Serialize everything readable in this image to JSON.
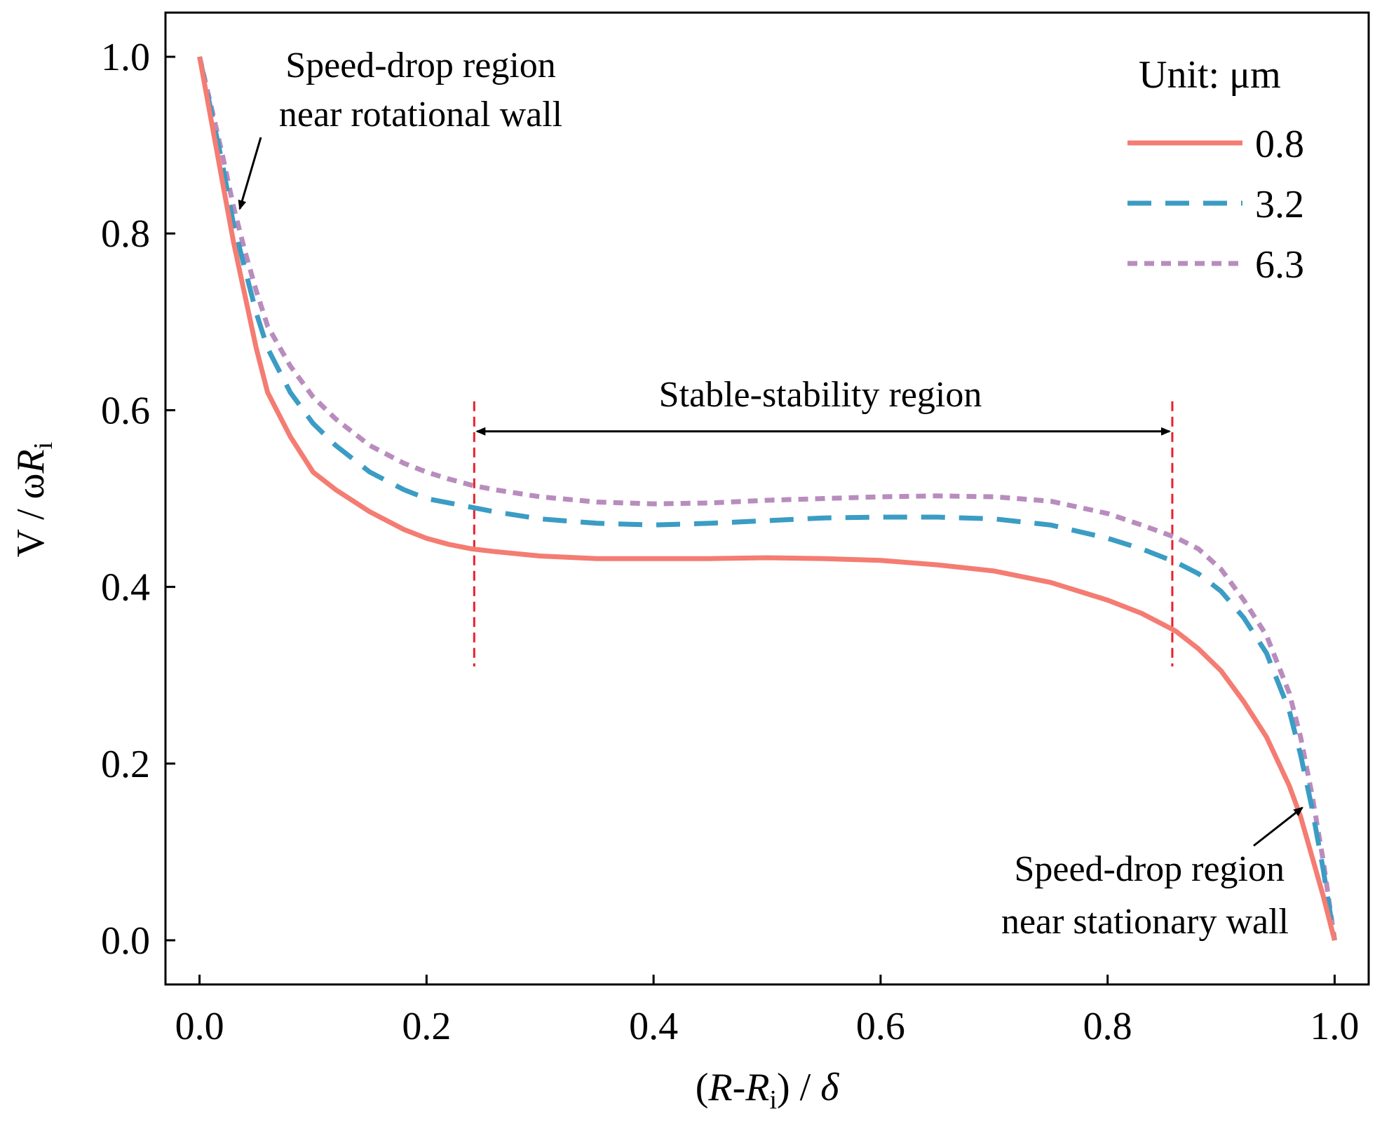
{
  "chart_data": {
    "type": "line",
    "title": "",
    "xlabel": {
      "pre": "(",
      "sym1": "R",
      "dash": "-",
      "sym2": "R",
      "sub": "i",
      "post": ") / ",
      "delta": "δ"
    },
    "ylabel": {
      "pre": "V / ω",
      "sym": "R",
      "sub": "i"
    },
    "xlim": [
      -0.03,
      1.03
    ],
    "ylim": [
      -0.05,
      1.05
    ],
    "xticks": [
      "0.0",
      "0.2",
      "0.4",
      "0.6",
      "0.8",
      "1.0"
    ],
    "yticks": [
      "0.0",
      "0.2",
      "0.4",
      "0.6",
      "0.8",
      "1.0"
    ],
    "legend_title": "Unit: μm",
    "legend_position": "top-right",
    "series": [
      {
        "name": "0.8",
        "color": "#f47c72",
        "style": "solid",
        "x": [
          0.0,
          0.01,
          0.02,
          0.03,
          0.04,
          0.05,
          0.06,
          0.08,
          0.1,
          0.12,
          0.15,
          0.18,
          0.2,
          0.22,
          0.24,
          0.26,
          0.3,
          0.35,
          0.4,
          0.45,
          0.5,
          0.55,
          0.6,
          0.65,
          0.7,
          0.75,
          0.8,
          0.83,
          0.86,
          0.88,
          0.9,
          0.92,
          0.94,
          0.96,
          0.97,
          0.98,
          0.99,
          1.0
        ],
        "values": [
          1.0,
          0.93,
          0.86,
          0.79,
          0.73,
          0.67,
          0.62,
          0.57,
          0.53,
          0.51,
          0.485,
          0.465,
          0.455,
          0.448,
          0.443,
          0.44,
          0.435,
          0.432,
          0.432,
          0.432,
          0.433,
          0.432,
          0.43,
          0.425,
          0.418,
          0.405,
          0.385,
          0.37,
          0.35,
          0.33,
          0.305,
          0.27,
          0.23,
          0.175,
          0.14,
          0.095,
          0.05,
          0.0
        ]
      },
      {
        "name": "3.2",
        "color": "#3b9cc4",
        "style": "dashed",
        "x": [
          0.0,
          0.01,
          0.02,
          0.03,
          0.04,
          0.05,
          0.06,
          0.08,
          0.1,
          0.12,
          0.15,
          0.18,
          0.2,
          0.22,
          0.24,
          0.26,
          0.3,
          0.35,
          0.4,
          0.45,
          0.5,
          0.55,
          0.6,
          0.65,
          0.7,
          0.75,
          0.8,
          0.83,
          0.86,
          0.88,
          0.9,
          0.92,
          0.94,
          0.96,
          0.97,
          0.98,
          0.99,
          1.0
        ],
        "values": [
          1.0,
          0.94,
          0.88,
          0.81,
          0.76,
          0.71,
          0.67,
          0.62,
          0.585,
          0.56,
          0.53,
          0.51,
          0.5,
          0.495,
          0.49,
          0.485,
          0.477,
          0.472,
          0.47,
          0.472,
          0.475,
          0.478,
          0.479,
          0.479,
          0.477,
          0.47,
          0.455,
          0.443,
          0.428,
          0.415,
          0.395,
          0.365,
          0.325,
          0.26,
          0.21,
          0.15,
          0.08,
          0.0
        ]
      },
      {
        "name": "6.3",
        "color": "#b98cbe",
        "style": "dotted",
        "x": [
          0.0,
          0.01,
          0.02,
          0.03,
          0.04,
          0.05,
          0.06,
          0.08,
          0.1,
          0.12,
          0.15,
          0.18,
          0.2,
          0.22,
          0.24,
          0.26,
          0.3,
          0.35,
          0.4,
          0.45,
          0.5,
          0.55,
          0.6,
          0.65,
          0.7,
          0.75,
          0.8,
          0.83,
          0.86,
          0.88,
          0.9,
          0.92,
          0.94,
          0.96,
          0.97,
          0.98,
          0.99,
          1.0
        ],
        "values": [
          1.0,
          0.945,
          0.89,
          0.83,
          0.78,
          0.735,
          0.695,
          0.65,
          0.615,
          0.59,
          0.56,
          0.54,
          0.53,
          0.522,
          0.515,
          0.51,
          0.502,
          0.496,
          0.494,
          0.495,
          0.498,
          0.5,
          0.502,
          0.503,
          0.502,
          0.497,
          0.483,
          0.47,
          0.456,
          0.443,
          0.42,
          0.385,
          0.345,
          0.28,
          0.23,
          0.165,
          0.09,
          0.0
        ]
      }
    ],
    "vlines": [
      {
        "x": 0.242,
        "y_range": [
          0.31,
          0.61
        ],
        "color": "#e8202a"
      },
      {
        "x": 0.857,
        "y_range": [
          0.31,
          0.61
        ],
        "color": "#e8202a"
      }
    ],
    "range_arrow": {
      "x_from": 0.242,
      "x_to": 0.857,
      "y": 0.576
    },
    "annotations": {
      "top_left": {
        "line1": "Speed-drop region",
        "line2": "near rotational wall",
        "points_to": {
          "x": 0.033,
          "y": 0.82
        }
      },
      "middle": {
        "text": "Stable-stability region"
      },
      "bottom_right": {
        "line1": "Speed-drop region",
        "line2": "near stationary wall",
        "points_to": {
          "x": 0.974,
          "y": 0.158
        }
      }
    }
  }
}
